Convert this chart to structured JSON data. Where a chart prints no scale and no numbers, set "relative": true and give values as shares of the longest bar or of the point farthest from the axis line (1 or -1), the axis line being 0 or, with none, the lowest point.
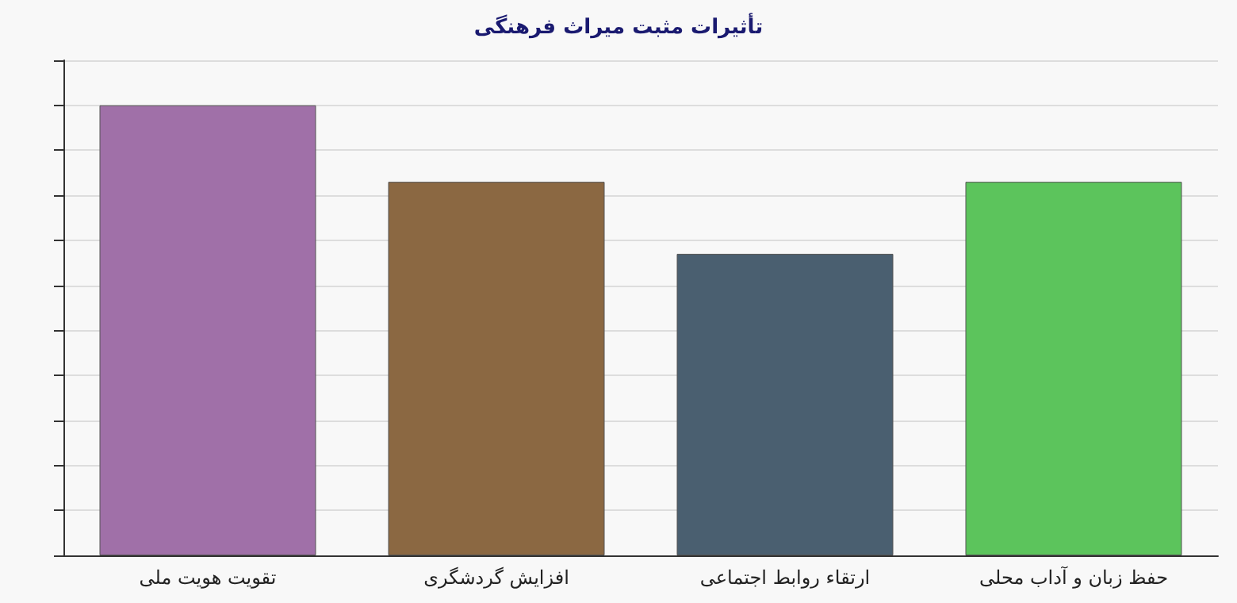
{
  "chart_data": {
    "type": "bar",
    "title": "تأثیرات مثبت میراث فرهنگی",
    "categories": [
      "تقویت هویت ملی",
      "افزایش گردشگری",
      "ارتقاء روابط اجتماعی",
      "حفظ زبان و آداب محلی"
    ],
    "values": [
      1,
      0.83,
      0.67,
      0.83
    ],
    "colors": [
      "#a070a8",
      "#8b6842",
      "#4a5f70",
      "#5cc45c"
    ],
    "relative": true,
    "grid": "y"
  }
}
